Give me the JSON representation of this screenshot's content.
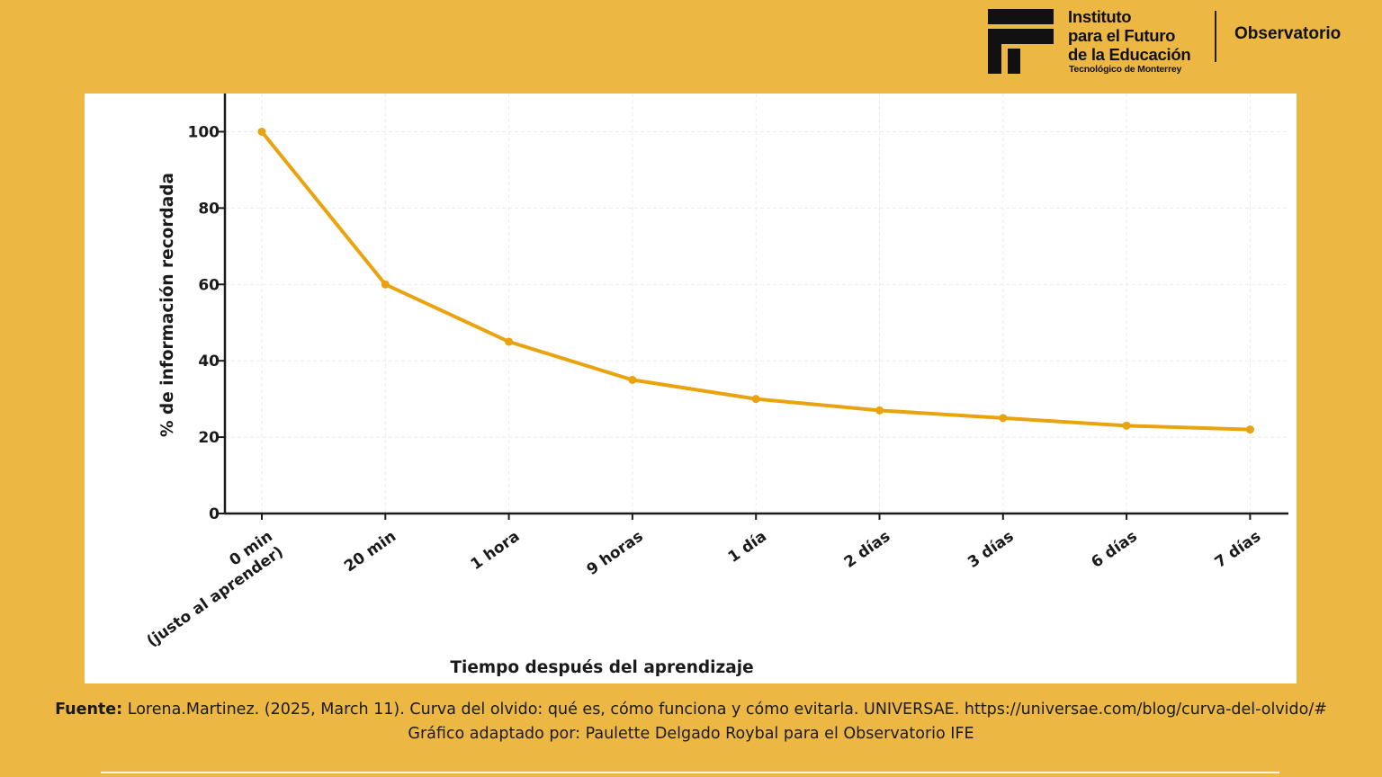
{
  "colors": {
    "background": "#EDB744",
    "line": "#E8A30F",
    "axis": "#1a1a1a",
    "grid": "#ebebeb"
  },
  "logo": {
    "mark_icon": "ife-logo-mark",
    "institute_line1": "Instituto",
    "institute_line2": "para el Futuro",
    "institute_line3": "de la Educación",
    "institute_sub": "Tecnológico de Monterrey",
    "observatorio": "Observatorio"
  },
  "chart_data": {
    "type": "line",
    "title": "",
    "xlabel": "Tiempo después del aprendizaje",
    "ylabel": "% de información recordada",
    "categories": [
      "0 min\n(justo al aprender)",
      "20 min",
      "1 hora",
      "9 horas",
      "1 día",
      "2 días",
      "3 días",
      "6 días",
      "7 días"
    ],
    "series": [
      {
        "name": "% de información recordada",
        "values": [
          100,
          60,
          45,
          35,
          30,
          27,
          25,
          23,
          22
        ]
      }
    ],
    "ylim": [
      0,
      110
    ],
    "yticks": [
      0,
      20,
      40,
      60,
      80,
      100
    ],
    "grid": true
  },
  "footer": {
    "source_label": "Fuente:",
    "source_text": "Lorena.Martinez. (2025, March 11). Curva del olvido: qué es, cómo funciona y cómo evitarla. UNIVERSAE. https://universae.com/blog/curva-del-olvido/#",
    "adapted_text": "Gráfico adaptado por: Paulette Delgado Roybal para el Observatorio IFE"
  }
}
